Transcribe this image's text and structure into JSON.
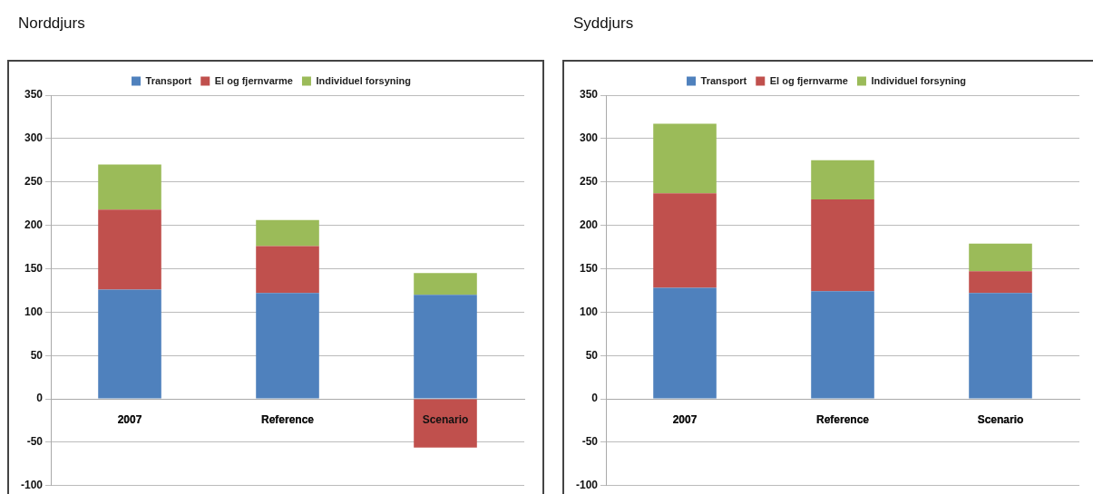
{
  "chart_data": [
    {
      "type": "bar",
      "title": "Norddjurs",
      "categories": [
        "2007",
        "Reference",
        "Scenario"
      ],
      "stacked": true,
      "series": [
        {
          "name": "Transport",
          "color": "#4f81bd",
          "values": [
            126,
            122,
            120
          ]
        },
        {
          "name": "El og fjernvarme",
          "color": "#c0504d",
          "values": [
            92,
            54,
            -56
          ]
        },
        {
          "name": "Individuel forsyning",
          "color": "#9bbb59",
          "values": [
            52,
            30,
            25
          ]
        }
      ],
      "ylim": [
        -100,
        350
      ],
      "yticks": [
        -100,
        -50,
        0,
        50,
        100,
        150,
        200,
        250,
        300,
        350
      ],
      "grid": "y",
      "legend": "top"
    },
    {
      "type": "bar",
      "title": "Syddjurs",
      "categories": [
        "2007",
        "Reference",
        "Scenario"
      ],
      "stacked": true,
      "series": [
        {
          "name": "Transport",
          "color": "#4f81bd",
          "values": [
            128,
            124,
            122
          ]
        },
        {
          "name": "El og fjernvarme",
          "color": "#c0504d",
          "values": [
            109,
            106,
            25
          ]
        },
        {
          "name": "Individuel forsyning",
          "color": "#9bbb59",
          "values": [
            80,
            45,
            32
          ]
        }
      ],
      "ylim": [
        -100,
        350
      ],
      "yticks": [
        -100,
        -50,
        0,
        50,
        100,
        150,
        200,
        250,
        300,
        350
      ],
      "grid": "y",
      "legend": "top"
    }
  ]
}
